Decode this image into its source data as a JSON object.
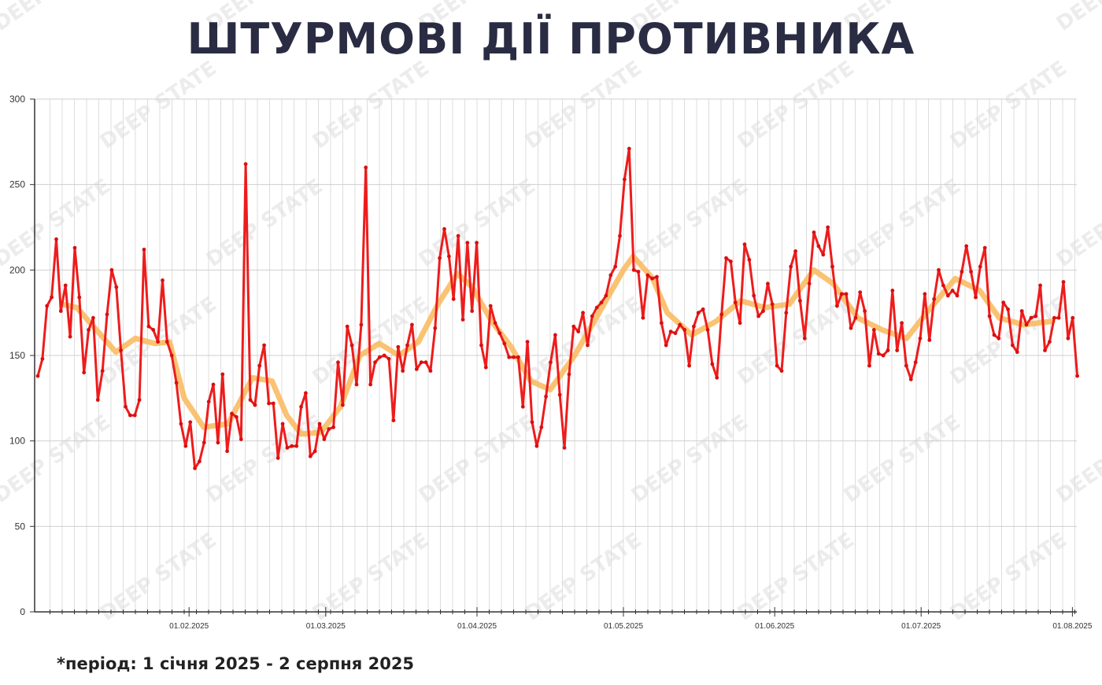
{
  "title": "ШТУРМОВІ ДІЇ ПРОТИВНИКА",
  "footnote": "*період: 1 січня 2025 - 2 серпня 2025",
  "watermark": "DEEP STATE",
  "colors": {
    "series": "#ee1c1c",
    "trend": "#f9b95a",
    "title": "#2a2c43",
    "grid": "#dddddd"
  },
  "chart_data": {
    "type": "line",
    "title": "ШТУРМОВІ ДІЇ ПРОТИВНИКА",
    "xlabel": "",
    "ylabel": "",
    "start_date": "2025-01-01",
    "end_day": 213,
    "ylim": [
      0,
      300
    ],
    "yticks": [
      0,
      50,
      100,
      150,
      200,
      250,
      300
    ],
    "xticks": [
      {
        "day": 31,
        "label": "01.02.2025"
      },
      {
        "day": 59,
        "label": "01.03.2025"
      },
      {
        "day": 90,
        "label": "01.04.2025"
      },
      {
        "day": 120,
        "label": "01.05.2025"
      },
      {
        "day": 151,
        "label": "01.06.2025"
      },
      {
        "day": 181,
        "label": "01.07.2025"
      },
      {
        "day": 212,
        "label": "01.08.2025"
      }
    ],
    "grid": true,
    "series": [
      {
        "name": "daily",
        "values": [
          138,
          148,
          179,
          184,
          218,
          176,
          191,
          161,
          213,
          184,
          140,
          165,
          172,
          124,
          141,
          174,
          200,
          190,
          153,
          120,
          115,
          115,
          124,
          212,
          167,
          165,
          158,
          194,
          158,
          150,
          134,
          110,
          97,
          111,
          84,
          88,
          99,
          123,
          133,
          99,
          139,
          94,
          116,
          114,
          101,
          262,
          124,
          121,
          144,
          156,
          122,
          122,
          90,
          110,
          96,
          97,
          97,
          120,
          128,
          91,
          94,
          110,
          101,
          107,
          108,
          146,
          121,
          167,
          156,
          133,
          168,
          260,
          133,
          146,
          149,
          150,
          148,
          112,
          155,
          141,
          156,
          168,
          142,
          146,
          146,
          141,
          166,
          207,
          224,
          208,
          183,
          220,
          171,
          216,
          176,
          216,
          156,
          143,
          179,
          169,
          163,
          157,
          149,
          149,
          149,
          120,
          158,
          111,
          97,
          108,
          126,
          146,
          162,
          127,
          96,
          139,
          167,
          164,
          175,
          156,
          173,
          178,
          181,
          185,
          197,
          202,
          220,
          253,
          271,
          200,
          199,
          172,
          197,
          195,
          196,
          169,
          156,
          164,
          163,
          168,
          165,
          144,
          167,
          175,
          177,
          165,
          145,
          137,
          174,
          207,
          205,
          181,
          169,
          215,
          206,
          185,
          173,
          176,
          192,
          180,
          144,
          141,
          175,
          202,
          211,
          182,
          160,
          192,
          222,
          214,
          209,
          225,
          202,
          179,
          186,
          186,
          166,
          172,
          187,
          176,
          144,
          165,
          151,
          150,
          153,
          188,
          153,
          169,
          144,
          136,
          146,
          160,
          186,
          159,
          183,
          200,
          191,
          185,
          188,
          185,
          199,
          214,
          199,
          184,
          202,
          213,
          173,
          162,
          160,
          181,
          177,
          156,
          152,
          176,
          168,
          172,
          173,
          191,
          153,
          158,
          172,
          172,
          193,
          160,
          172,
          138
        ]
      },
      {
        "name": "trend",
        "points": [
          [
            5,
            180
          ],
          [
            8,
            178
          ],
          [
            12,
            165
          ],
          [
            16,
            152
          ],
          [
            20,
            160
          ],
          [
            24,
            157
          ],
          [
            27,
            158
          ],
          [
            30,
            125
          ],
          [
            34,
            108
          ],
          [
            39,
            110
          ],
          [
            44,
            137
          ],
          [
            48,
            135
          ],
          [
            51,
            115
          ],
          [
            54,
            104
          ],
          [
            58,
            105
          ],
          [
            62,
            120
          ],
          [
            66,
            150
          ],
          [
            70,
            157
          ],
          [
            74,
            150
          ],
          [
            78,
            158
          ],
          [
            82,
            180
          ],
          [
            86,
            198
          ],
          [
            89,
            190
          ],
          [
            93,
            170
          ],
          [
            97,
            155
          ],
          [
            101,
            135
          ],
          [
            105,
            130
          ],
          [
            110,
            150
          ],
          [
            115,
            175
          ],
          [
            120,
            200
          ],
          [
            122,
            208
          ],
          [
            126,
            195
          ],
          [
            129,
            175
          ],
          [
            134,
            162
          ],
          [
            139,
            170
          ],
          [
            144,
            182
          ],
          [
            149,
            178
          ],
          [
            154,
            180
          ],
          [
            159,
            200
          ],
          [
            163,
            192
          ],
          [
            168,
            172
          ],
          [
            173,
            165
          ],
          [
            178,
            160
          ],
          [
            183,
            178
          ],
          [
            188,
            195
          ],
          [
            193,
            188
          ],
          [
            197,
            172
          ],
          [
            202,
            168
          ],
          [
            208,
            170
          ]
        ]
      }
    ]
  }
}
